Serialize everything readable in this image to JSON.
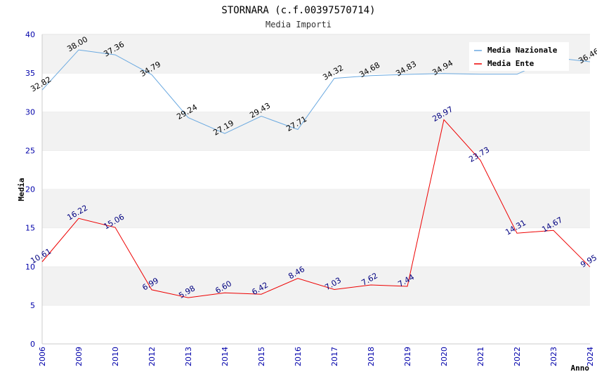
{
  "header": {
    "title": "STORNARA (c.f.00397570714)",
    "subtitle": "Media Importi"
  },
  "chart_data": {
    "type": "line",
    "title": "STORNARA (c.f.00397570714)",
    "subtitle": "Media Importi",
    "xlabel": "Anno",
    "ylabel": "Media",
    "ylim": [
      0,
      40
    ],
    "y_ticks": [
      "0",
      "5",
      "10",
      "15",
      "20",
      "25",
      "30",
      "35",
      "40"
    ],
    "categories": [
      "2006",
      "2009",
      "2010",
      "2012",
      "2013",
      "2014",
      "2015",
      "2016",
      "2017",
      "2018",
      "2019",
      "2020",
      "2021",
      "2022",
      "2023",
      "2024"
    ],
    "series": [
      {
        "name": "Media Nazionale",
        "color": "#6aa9e0",
        "label_color": "#000000",
        "values": [
          32.82,
          38.0,
          37.36,
          34.79,
          29.24,
          27.19,
          29.43,
          27.71,
          34.32,
          34.68,
          34.83,
          34.94,
          34.85,
          34.85,
          37.0,
          36.46
        ],
        "labels": [
          "32.82",
          "38.00",
          "37.36",
          "34.79",
          "29.24",
          "27.19",
          "29.43",
          "27.71",
          "34.32",
          "34.68",
          "34.83",
          "34.94",
          "",
          "",
          "",
          "36.46"
        ]
      },
      {
        "name": "Media Ente",
        "color": "#ee0000",
        "label_color": "#000080",
        "values": [
          10.61,
          16.22,
          15.06,
          6.99,
          5.98,
          6.6,
          6.42,
          8.46,
          7.03,
          7.62,
          7.44,
          28.97,
          23.73,
          14.31,
          14.67,
          9.95
        ],
        "labels": [
          "10.61",
          "16.22",
          "15.06",
          "6.99",
          "5.98",
          "6.60",
          "6.42",
          "8.46",
          "7.03",
          "7.62",
          "7.44",
          "28.97",
          "23.73",
          "14.31",
          "14.67",
          "9.95"
        ]
      }
    ],
    "legend_position": "top-right",
    "grid": true
  }
}
